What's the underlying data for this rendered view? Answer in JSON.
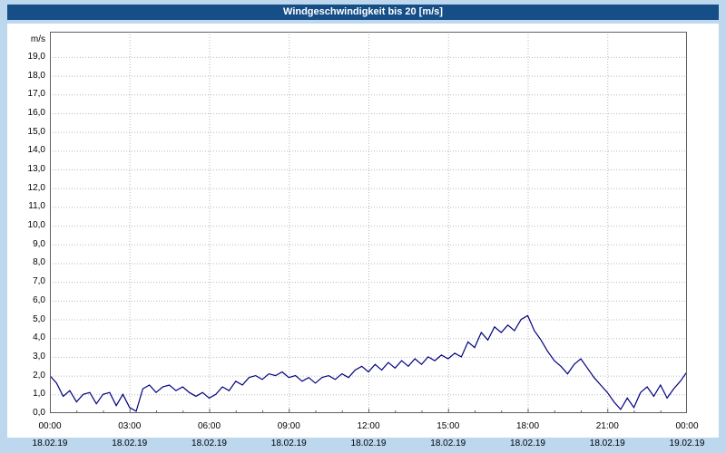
{
  "window": {
    "title": "Windgeschwindigkeit bis 20 [m/s]"
  },
  "colors": {
    "background": "#BDD7EE",
    "titlebar": "#164E87",
    "titlebar_text": "#FFFFFF",
    "panel": "#FFFFFF",
    "line": "#000080",
    "grid": "#B8B8B8",
    "frame": "#606060",
    "text": "#000000"
  },
  "y_axis": {
    "unit": "m/s",
    "tick_labels": [
      "19,0",
      "18,0",
      "17,0",
      "16,0",
      "15,0",
      "14,0",
      "13,0",
      "12,0",
      "11,0",
      "10,0",
      "9,0",
      "8,0",
      "7,0",
      "6,0",
      "5,0",
      "4,0",
      "3,0",
      "2,0",
      "1,0",
      "0,0"
    ]
  },
  "x_axis": {
    "time_labels": [
      "00:00",
      "03:00",
      "06:00",
      "09:00",
      "12:00",
      "15:00",
      "18:00",
      "21:00",
      "00:00"
    ],
    "date_labels": [
      "18.02.19",
      "18.02.19",
      "18.02.19",
      "18.02.19",
      "18.02.19",
      "18.02.19",
      "18.02.19",
      "18.02.19",
      "19.02.19"
    ]
  },
  "chart_data": {
    "type": "line",
    "title": "Windgeschwindigkeit bis 20 [m/s]",
    "series_name": "Windgeschwindigkeit",
    "ylabel": "m/s",
    "ylim": [
      0,
      20
    ],
    "grid": true,
    "x_start_hour": 0,
    "x_end_hour": 24,
    "interval_hours": 0.25,
    "x_tick_hours": [
      0,
      3,
      6,
      9,
      12,
      15,
      18,
      21,
      24
    ],
    "x_tick_time_labels": [
      "00:00",
      "03:00",
      "06:00",
      "09:00",
      "12:00",
      "15:00",
      "18:00",
      "21:00",
      "00:00"
    ],
    "x_tick_date_labels": [
      "18.02.19",
      "18.02.19",
      "18.02.19",
      "18.02.19",
      "18.02.19",
      "18.02.19",
      "18.02.19",
      "18.02.19",
      "19.02.19"
    ],
    "values": [
      2.0,
      1.6,
      0.9,
      1.2,
      0.6,
      1.0,
      1.1,
      0.5,
      1.0,
      1.1,
      0.4,
      1.0,
      0.3,
      0.1,
      1.3,
      1.5,
      1.1,
      1.4,
      1.5,
      1.2,
      1.4,
      1.1,
      0.9,
      1.1,
      0.8,
      1.0,
      1.4,
      1.2,
      1.7,
      1.5,
      1.9,
      2.0,
      1.8,
      2.1,
      2.0,
      2.2,
      1.9,
      2.0,
      1.7,
      1.9,
      1.6,
      1.9,
      2.0,
      1.8,
      2.1,
      1.9,
      2.3,
      2.5,
      2.2,
      2.6,
      2.3,
      2.7,
      2.4,
      2.8,
      2.5,
      2.9,
      2.6,
      3.0,
      2.8,
      3.1,
      2.9,
      3.2,
      3.0,
      3.8,
      3.5,
      4.3,
      3.9,
      4.6,
      4.3,
      4.7,
      4.4,
      5.0,
      5.2,
      4.4,
      3.9,
      3.3,
      2.8,
      2.5,
      2.1,
      2.6,
      2.9,
      2.4,
      1.9,
      1.5,
      1.1,
      0.6,
      0.2,
      0.8,
      0.3,
      1.1,
      1.4,
      0.9,
      1.5,
      0.8,
      1.3,
      1.7,
      2.2
    ]
  }
}
